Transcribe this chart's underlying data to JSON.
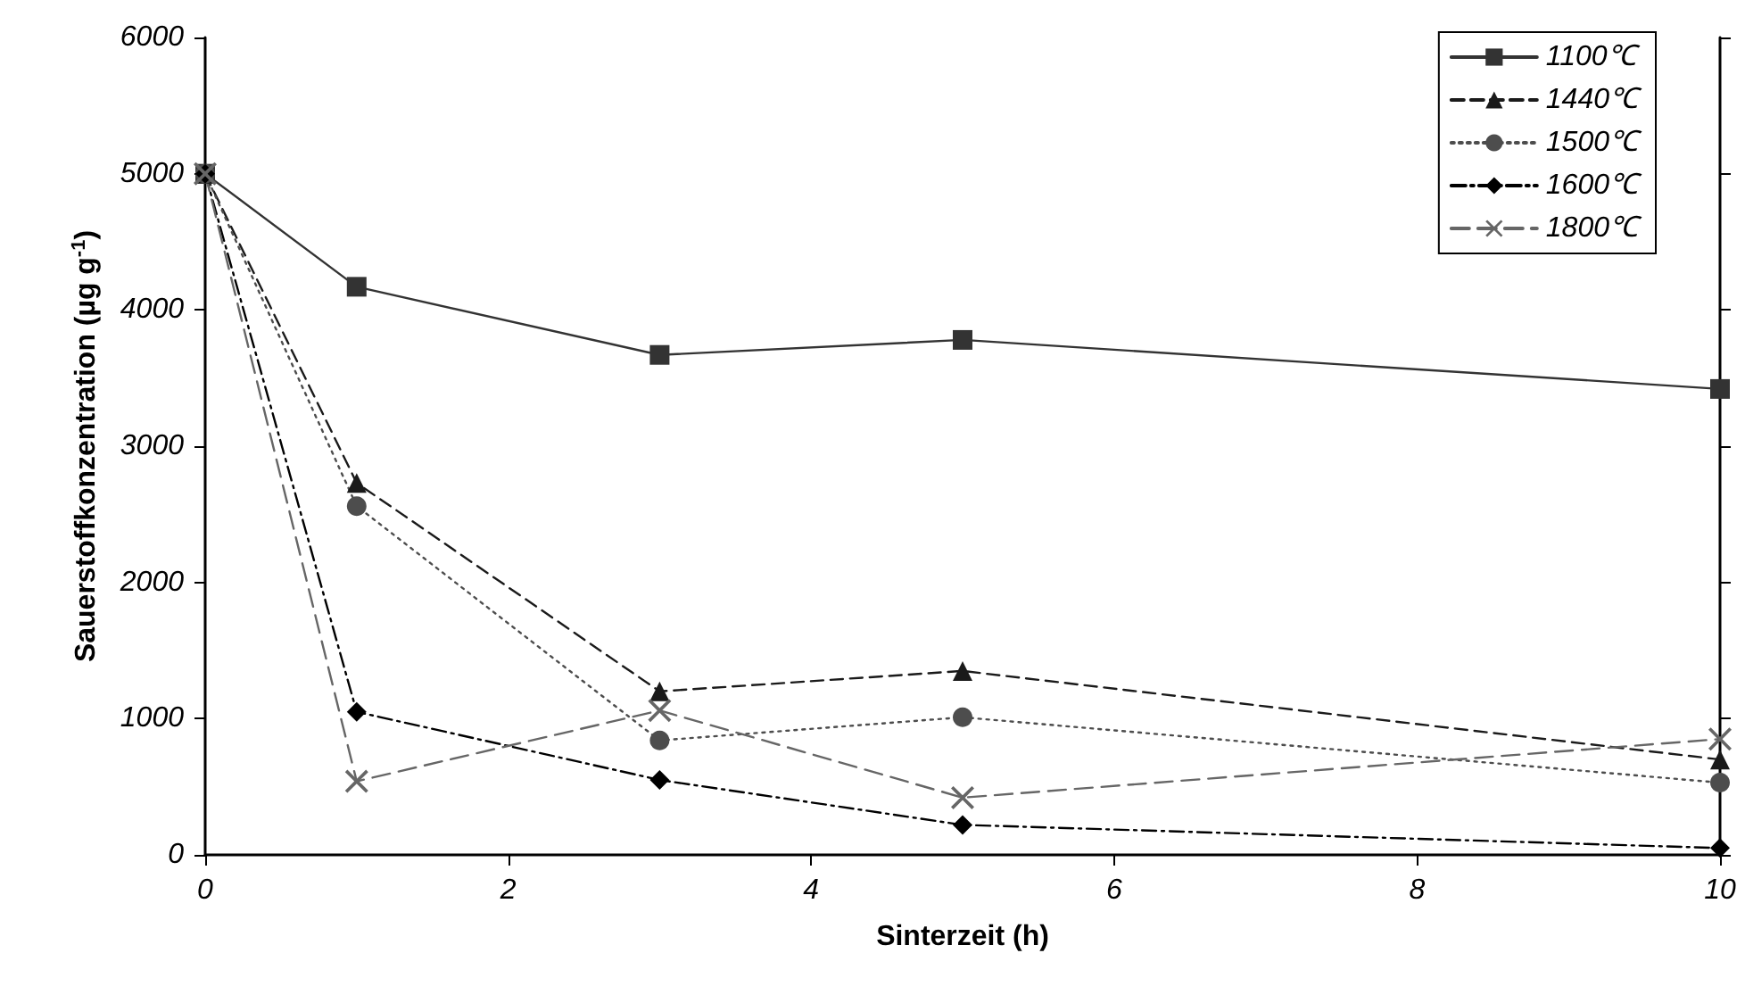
{
  "chart_data": {
    "type": "line",
    "xlabel": "Sinterzeit (h)",
    "ylabel": "Sauerstoffkonzentration (µg g$^{-1}$)",
    "x": [
      0,
      1,
      3,
      5,
      10
    ],
    "xlim": [
      0,
      10
    ],
    "xticks": [
      0,
      2,
      4,
      6,
      8,
      10
    ],
    "ylim": [
      0,
      6000
    ],
    "yticks": [
      0,
      1000,
      2000,
      3000,
      4000,
      5000,
      6000
    ],
    "grid": false,
    "legend": "top right",
    "series": [
      {
        "name": "1100℃",
        "color": "#333333",
        "marker": "square",
        "line_style": "solid",
        "values": [
          5000,
          4170,
          3670,
          3780,
          3420
        ]
      },
      {
        "name": "1440℃",
        "color": "#1a1a1a",
        "marker": "triangle",
        "line_style": "dashed",
        "values": [
          5000,
          2730,
          1200,
          1350,
          700
        ]
      },
      {
        "name": "1500℃",
        "color": "#4d4d4d",
        "marker": "circle",
        "line_style": "dotted",
        "values": [
          5000,
          2560,
          840,
          1010,
          530
        ]
      },
      {
        "name": "1600℃",
        "color": "#000000",
        "marker": "diamond",
        "line_style": "dashdot",
        "values": [
          5000,
          1050,
          550,
          220,
          50
        ]
      },
      {
        "name": "1800℃",
        "color": "#666666",
        "marker": "cross",
        "line_style": "longdash",
        "values": [
          5000,
          540,
          1060,
          420,
          850
        ]
      }
    ]
  }
}
